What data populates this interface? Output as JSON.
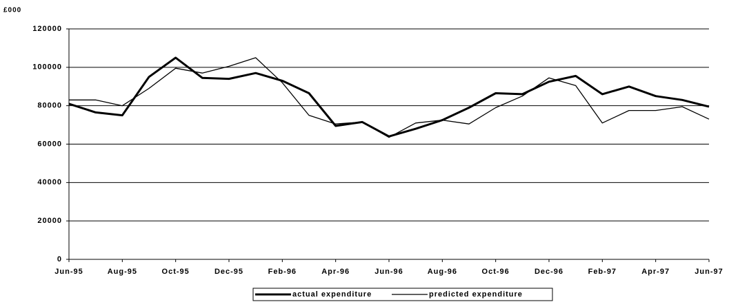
{
  "chart_data": {
    "type": "line",
    "y_label": "£000",
    "categories": [
      "Jun-95",
      null,
      "Aug-95",
      null,
      "Oct-95",
      null,
      "Dec-95",
      null,
      "Feb-96",
      null,
      "Apr-96",
      null,
      "Jun-96",
      null,
      "Aug-96",
      null,
      "Oct-96",
      null,
      "Dec-96",
      null,
      "Feb-97",
      null,
      "Apr-97",
      null,
      "Jun-97"
    ],
    "series": [
      {
        "name": "actual expenditure",
        "color": "#000000",
        "values": [
          81000,
          76500,
          75000,
          95000,
          105000,
          94500,
          94000,
          97000,
          93000,
          86500,
          69500,
          71500,
          64000,
          68000,
          72500,
          79000,
          86500,
          86000,
          92500,
          95500,
          86000,
          90000,
          85000,
          83000,
          79500
        ]
      },
      {
        "name": "predicted expenditure",
        "color": "#000000",
        "values": [
          83000,
          83000,
          80000,
          89000,
          99500,
          97000,
          100500,
          105000,
          92000,
          75000,
          70500,
          71500,
          63500,
          71000,
          72500,
          70500,
          79000,
          85000,
          94500,
          90500,
          71000,
          77500,
          77500,
          79500,
          73000
        ]
      }
    ],
    "ylim": [
      0,
      120000
    ],
    "yticks": [
      0,
      20000,
      40000,
      60000,
      80000,
      100000,
      120000
    ],
    "grid": true,
    "legend": "bottom"
  }
}
